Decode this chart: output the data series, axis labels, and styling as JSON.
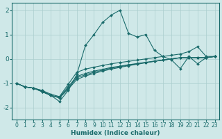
{
  "xlabel": "Humidex (Indice chaleur)",
  "ylabel": "",
  "xlim": [
    -0.5,
    23.5
  ],
  "ylim": [
    -2.5,
    2.3
  ],
  "xticks": [
    0,
    1,
    2,
    3,
    4,
    5,
    6,
    7,
    8,
    9,
    10,
    11,
    12,
    13,
    14,
    15,
    16,
    17,
    18,
    19,
    20,
    21,
    22,
    23
  ],
  "yticks": [
    -2,
    -1,
    0,
    1,
    2
  ],
  "background_color": "#cfe8e8",
  "grid_color": "#aacece",
  "line_color": "#1a6b6b",
  "lines": [
    {
      "x": [
        0,
        1,
        2,
        3,
        4,
        5,
        6,
        7,
        8,
        9,
        10,
        11,
        12,
        13,
        14,
        15,
        16,
        17,
        18,
        19,
        20,
        21,
        22,
        23
      ],
      "y": [
        -1.0,
        -1.15,
        -1.2,
        -1.3,
        -1.5,
        -1.75,
        -1.3,
        -0.65,
        0.55,
        1.0,
        1.5,
        1.8,
        2.0,
        1.05,
        0.9,
        1.0,
        0.35,
        0.1,
        -0.05,
        -0.4,
        0.1,
        -0.2,
        0.05,
        0.1
      ]
    },
    {
      "x": [
        0,
        1,
        2,
        3,
        4,
        5,
        6,
        7,
        8,
        9,
        10,
        11,
        12,
        13,
        14,
        15,
        16,
        17,
        18,
        19,
        20,
        21,
        22,
        23
      ],
      "y": [
        -1.0,
        -1.15,
        -1.2,
        -1.35,
        -1.5,
        -1.6,
        -1.25,
        -0.85,
        -0.7,
        -0.6,
        -0.5,
        -0.42,
        -0.35,
        -0.28,
        -0.22,
        -0.16,
        -0.1,
        -0.05,
        0.0,
        0.05,
        0.05,
        0.05,
        0.05,
        0.1
      ]
    },
    {
      "x": [
        0,
        1,
        2,
        3,
        4,
        5,
        6,
        7,
        8,
        9,
        10,
        11,
        12,
        13,
        14,
        15,
        16,
        17,
        18,
        19,
        20,
        21,
        22,
        23
      ],
      "y": [
        -1.0,
        -1.15,
        -1.2,
        -1.35,
        -1.5,
        -1.6,
        -1.2,
        -0.78,
        -0.65,
        -0.55,
        -0.46,
        -0.38,
        -0.32,
        -0.26,
        -0.2,
        -0.15,
        -0.1,
        -0.05,
        0.0,
        0.05,
        0.05,
        0.05,
        0.05,
        0.1
      ]
    },
    {
      "x": [
        0,
        1,
        2,
        3,
        4,
        5,
        6,
        7,
        8,
        9,
        10,
        11,
        12,
        13,
        14,
        15,
        16,
        17,
        18,
        19,
        20,
        21,
        22,
        23
      ],
      "y": [
        -1.0,
        -1.15,
        -1.2,
        -1.35,
        -1.5,
        -1.57,
        -1.15,
        -0.72,
        -0.6,
        -0.5,
        -0.43,
        -0.35,
        -0.3,
        -0.24,
        -0.19,
        -0.14,
        -0.09,
        -0.05,
        0.0,
        0.04,
        0.04,
        0.05,
        0.05,
        0.1
      ]
    },
    {
      "x": [
        0,
        1,
        2,
        3,
        4,
        5,
        6,
        7,
        8,
        9,
        10,
        11,
        12,
        13,
        14,
        15,
        16,
        17,
        18,
        19,
        20,
        21,
        22,
        23
      ],
      "y": [
        -1.0,
        -1.15,
        -1.2,
        -1.3,
        -1.45,
        -1.55,
        -1.05,
        -0.55,
        -0.42,
        -0.34,
        -0.27,
        -0.2,
        -0.15,
        -0.1,
        -0.05,
        0.0,
        0.05,
        0.1,
        0.15,
        0.2,
        0.3,
        0.5,
        0.1,
        0.1
      ]
    }
  ]
}
